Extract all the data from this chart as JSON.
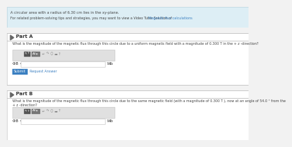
{
  "bg_color": "#f2f2f2",
  "banner_bg": "#ddeef5",
  "banner_border": "#b8d4e0",
  "white": "#ffffff",
  "blue_btn": "#3a7fc1",
  "link_color": "#3a7fc1",
  "border_color": "#c8c8c8",
  "dark_gray": "#444444",
  "text_gray": "#333333",
  "light_gray": "#e0e0e0",
  "toolbar_dark": "#888888",
  "header_text": "A circular area with a radius of 6.30 cm lies in the xy-plane.",
  "subheader_text": "For related problem-solving tips and strategies, you may want to view a Video Tutor Solution of ",
  "link_text": "Magnetic flux calculations",
  "part_a_label": "Part A",
  "part_a_question": "What is the magnitude of the magnetic flux through this circle due to a uniform magnetic field with a magnitude of 0.300 T in the + z -direction?",
  "part_b_label": "Part B",
  "part_b_question_line1": "What is the magnitude of the magnetic flux through this circle due to the same magnetic field (with a magnitude of 0.300 T ), now at an angle of 54.0 ° from the",
  "part_b_question_line2": "+ z -direction?",
  "phi_label": "ΦB =",
  "wb_label": "Wb",
  "submit_text": "Submit",
  "request_text": "Request Answer",
  "section_gap_color": "#e8e8e8",
  "triangle_color": "#666666",
  "icon_dark": "#555555",
  "icon_mid": "#888888"
}
